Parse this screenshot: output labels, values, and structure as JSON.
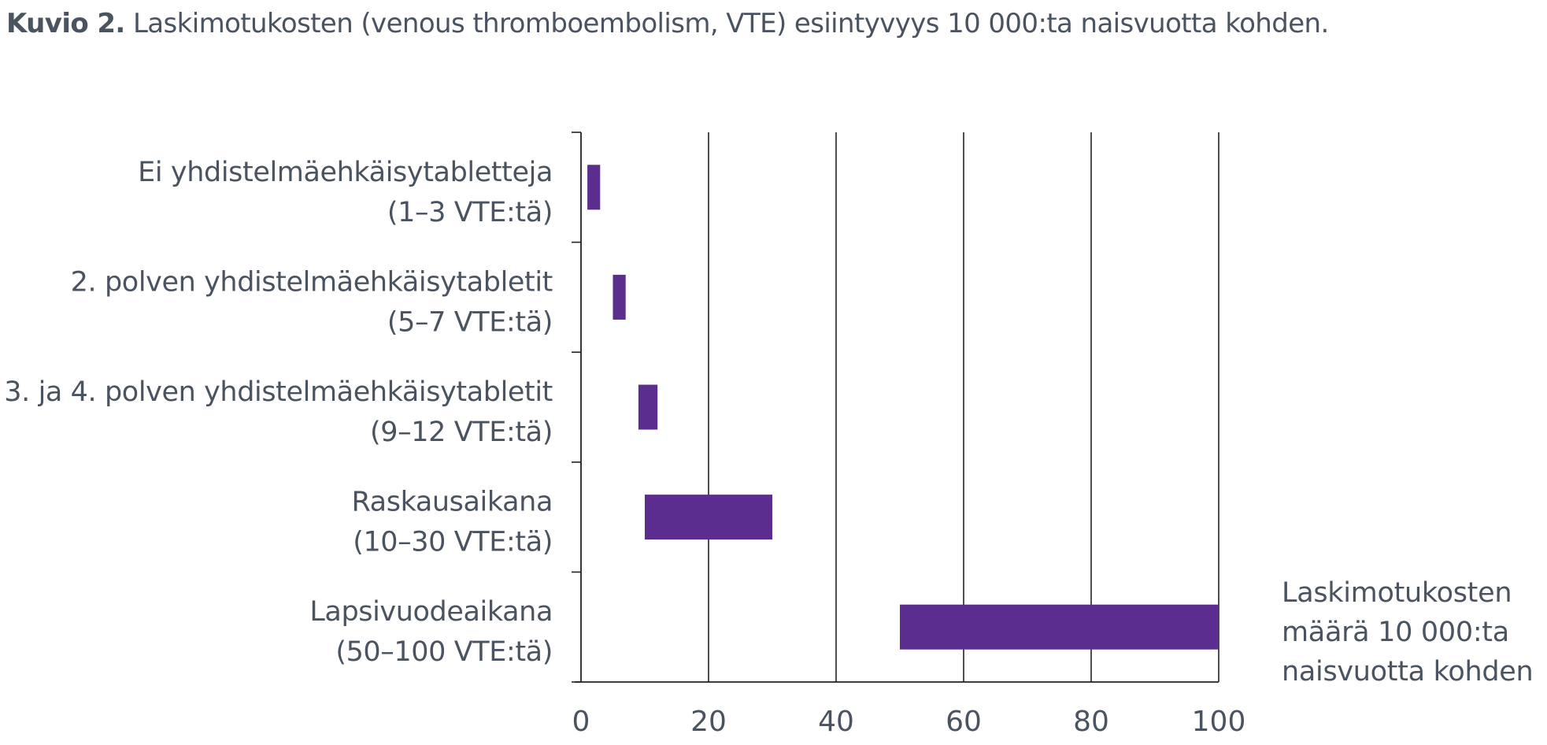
{
  "caption": {
    "lead": "Kuvio 2.",
    "text": "Laskimotukosten (venous thromboembolism, VTE) esiintyvyys 10 000:ta naisvuotta kohden."
  },
  "chart_data": {
    "type": "bar",
    "orientation": "horizontal",
    "title": "Kuvio 2. Laskimotukosten (venous thromboembolism, VTE) esiintyvyys 10 000:ta naisvuotta kohden.",
    "xlabel": [
      "Laskimotukosten",
      "määrä 10 000:ta",
      "naisvuotta kohden"
    ],
    "xlim": [
      0,
      100
    ],
    "xticks": [
      0,
      20,
      40,
      60,
      80,
      100
    ],
    "grid": "vertical",
    "categories": [
      {
        "label": [
          "Ei yhdistelmäehkäisytabletteja",
          "(1–3 VTE:tä)"
        ],
        "min": 1,
        "max": 3
      },
      {
        "label": [
          "2. polven yhdistelmäehkäisytabletit",
          "(5–7 VTE:tä)"
        ],
        "min": 5,
        "max": 7
      },
      {
        "label": [
          "3. ja 4. polven yhdistelmäehkäisytabletit",
          "(9–12 VTE:tä)"
        ],
        "min": 9,
        "max": 12
      },
      {
        "label": [
          "Raskausaikana",
          "(10–30 VTE:tä)"
        ],
        "min": 10,
        "max": 30
      },
      {
        "label": [
          "Lapsivuodeaikana",
          "(50–100 VTE:tä)"
        ],
        "min": 50,
        "max": 100
      }
    ],
    "bar_color": "#5b2d8e"
  }
}
